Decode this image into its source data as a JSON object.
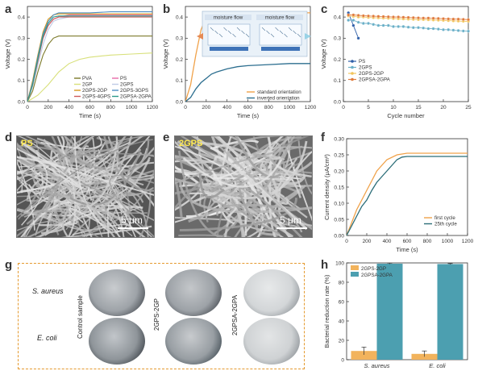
{
  "panels": {
    "a": "a",
    "b": "b",
    "c": "c",
    "d": "d",
    "e": "e",
    "f": "f",
    "g": "g",
    "h": "h"
  },
  "sem": {
    "d": {
      "tag": "PS",
      "scale": "5 μm"
    },
    "e": {
      "tag": "2GPS",
      "scale": "5 μm"
    }
  },
  "dishes": {
    "row1": "S. aureus",
    "row2": "E. coli",
    "cols": [
      "Control sample",
      "2GPS-2GP",
      "2GPSA-2GPA"
    ]
  },
  "chart_data": [
    {
      "panel": "a",
      "type": "line",
      "xlabel": "Time (s)",
      "ylabel": "Voltage (V)",
      "xlim": [
        0,
        1200
      ],
      "ylim": [
        0,
        0.45
      ],
      "xticks": [
        0,
        200,
        400,
        600,
        800,
        1000,
        1200
      ],
      "yticks": [
        0.0,
        0.1,
        0.2,
        0.3,
        0.4
      ],
      "legend_position": "bottom-right",
      "series": [
        {
          "name": "PVA",
          "color": "#7c7a2a",
          "x": [
            0,
            50,
            100,
            150,
            200,
            250,
            300,
            400,
            600,
            800,
            1000,
            1200
          ],
          "y": [
            0,
            0.05,
            0.14,
            0.22,
            0.27,
            0.3,
            0.31,
            0.31,
            0.31,
            0.31,
            0.31,
            0.31
          ]
        },
        {
          "name": "PS",
          "color": "#e86aa7",
          "x": [
            0,
            50,
            100,
            150,
            200,
            250,
            300,
            400,
            600,
            800,
            1000,
            1200
          ],
          "y": [
            0,
            0.08,
            0.2,
            0.3,
            0.36,
            0.39,
            0.4,
            0.41,
            0.41,
            0.41,
            0.41,
            0.41
          ]
        },
        {
          "name": "2GP",
          "color": "#d8e07a",
          "x": [
            0,
            100,
            200,
            300,
            400,
            500,
            600,
            800,
            1000,
            1200
          ],
          "y": [
            0,
            0.03,
            0.08,
            0.14,
            0.18,
            0.2,
            0.21,
            0.22,
            0.225,
            0.23
          ]
        },
        {
          "name": "2GPS",
          "color": "#c0cbe6",
          "x": [
            0,
            50,
            100,
            150,
            200,
            250,
            300,
            400,
            600,
            800,
            1000,
            1200
          ],
          "y": [
            0,
            0.07,
            0.17,
            0.27,
            0.34,
            0.38,
            0.39,
            0.4,
            0.4,
            0.4,
            0.4,
            0.4
          ]
        },
        {
          "name": "2GPS-2GP",
          "color": "#d89a1e",
          "x": [
            0,
            50,
            100,
            150,
            200,
            250,
            300,
            400,
            600,
            800,
            1000,
            1200
          ],
          "y": [
            0,
            0.1,
            0.22,
            0.33,
            0.39,
            0.41,
            0.415,
            0.415,
            0.415,
            0.415,
            0.415,
            0.415
          ]
        },
        {
          "name": "2GPS-3GPS",
          "color": "#4f8fc4",
          "x": [
            0,
            50,
            100,
            150,
            200,
            250,
            300,
            400,
            600,
            800,
            1000,
            1200
          ],
          "y": [
            0,
            0.09,
            0.21,
            0.32,
            0.38,
            0.41,
            0.42,
            0.42,
            0.42,
            0.425,
            0.425,
            0.425
          ]
        },
        {
          "name": "2GPS-4GPS",
          "color": "#cf5b5b",
          "x": [
            0,
            50,
            100,
            150,
            200,
            250,
            300,
            400,
            600,
            800,
            1000,
            1200
          ],
          "y": [
            0,
            0.08,
            0.19,
            0.3,
            0.36,
            0.39,
            0.4,
            0.4,
            0.4,
            0.4,
            0.4,
            0.4
          ]
        },
        {
          "name": "2GPSA-2GPA",
          "color": "#2b9a8a",
          "x": [
            0,
            50,
            100,
            150,
            200,
            250,
            300,
            400,
            600,
            800,
            1000,
            1200
          ],
          "y": [
            0,
            0.08,
            0.2,
            0.31,
            0.37,
            0.4,
            0.405,
            0.405,
            0.405,
            0.405,
            0.405,
            0.405
          ]
        }
      ]
    },
    {
      "panel": "b",
      "type": "line",
      "xlabel": "Time (s)",
      "ylabel": "Voltage (V)",
      "xlim": [
        0,
        1200
      ],
      "ylim": [
        0,
        0.45
      ],
      "xticks": [
        0,
        200,
        400,
        600,
        800,
        1000,
        1200
      ],
      "yticks": [
        0.0,
        0.1,
        0.2,
        0.3,
        0.4
      ],
      "legend_position": "bottom-right",
      "inset_labels": [
        "moisture flow",
        "moisture flow"
      ],
      "series": [
        {
          "name": "standard orientation",
          "color": "#f0a24a",
          "x": [
            0,
            50,
            100,
            150,
            200,
            250,
            300,
            400,
            600,
            800,
            1000,
            1200
          ],
          "y": [
            0,
            0.08,
            0.22,
            0.34,
            0.4,
            0.42,
            0.42,
            0.42,
            0.42,
            0.42,
            0.42,
            0.42
          ]
        },
        {
          "name": "inverted orientation",
          "color": "#2c6e8f",
          "x": [
            0,
            50,
            100,
            150,
            200,
            250,
            300,
            400,
            500,
            600,
            800,
            1000,
            1200
          ],
          "y": [
            0,
            0.02,
            0.06,
            0.09,
            0.11,
            0.13,
            0.14,
            0.155,
            0.165,
            0.17,
            0.175,
            0.18,
            0.18
          ]
        }
      ]
    },
    {
      "panel": "c",
      "type": "line",
      "xlabel": "Cycle number",
      "ylabel": "Voltage (V)",
      "xlim": [
        0,
        25
      ],
      "ylim": [
        0,
        0.45
      ],
      "xticks": [
        0,
        5,
        10,
        15,
        20,
        25
      ],
      "yticks": [
        0.0,
        0.1,
        0.2,
        0.3,
        0.4
      ],
      "legend_position": "bottom-left",
      "series": [
        {
          "name": "PS",
          "color": "#2f5fa8",
          "x": [
            1,
            2,
            3
          ],
          "y": [
            0.42,
            0.36,
            0.3
          ]
        },
        {
          "name": "2GPS",
          "color": "#6bb0c8",
          "x": [
            1,
            2,
            3,
            4,
            5,
            6,
            7,
            8,
            9,
            10,
            11,
            12,
            13,
            14,
            15,
            16,
            17,
            18,
            19,
            20,
            21,
            22,
            23,
            24,
            25
          ],
          "y": [
            0.385,
            0.385,
            0.375,
            0.37,
            0.37,
            0.365,
            0.36,
            0.36,
            0.36,
            0.355,
            0.355,
            0.355,
            0.352,
            0.35,
            0.35,
            0.348,
            0.345,
            0.345,
            0.343,
            0.34,
            0.34,
            0.338,
            0.336,
            0.334,
            0.333
          ]
        },
        {
          "name": "2GPS-2GP",
          "color": "#f2c45a",
          "x": [
            1,
            2,
            3,
            4,
            5,
            6,
            7,
            8,
            9,
            10,
            11,
            12,
            13,
            14,
            15,
            16,
            17,
            18,
            19,
            20,
            21,
            22,
            23,
            24,
            25
          ],
          "y": [
            0.405,
            0.403,
            0.4,
            0.4,
            0.398,
            0.397,
            0.396,
            0.395,
            0.394,
            0.393,
            0.392,
            0.391,
            0.39,
            0.389,
            0.388,
            0.388,
            0.387,
            0.386,
            0.385,
            0.384,
            0.383,
            0.382,
            0.381,
            0.38,
            0.38
          ]
        },
        {
          "name": "2GPSA-2GPA",
          "color": "#e07b3c",
          "x": [
            1,
            2,
            3,
            4,
            5,
            6,
            7,
            8,
            9,
            10,
            11,
            12,
            13,
            14,
            15,
            16,
            17,
            18,
            19,
            20,
            21,
            22,
            23,
            24,
            25
          ],
          "y": [
            0.41,
            0.41,
            0.408,
            0.406,
            0.405,
            0.404,
            0.403,
            0.402,
            0.401,
            0.4,
            0.4,
            0.399,
            0.398,
            0.397,
            0.396,
            0.395,
            0.395,
            0.394,
            0.393,
            0.392,
            0.391,
            0.39,
            0.39,
            0.389,
            0.388
          ]
        }
      ]
    },
    {
      "panel": "f",
      "type": "line",
      "xlabel": "Time (s)",
      "ylabel": "Current density (μA/cm²)",
      "xlim": [
        0,
        1200
      ],
      "ylim": [
        0,
        0.3
      ],
      "xticks": [
        0,
        200,
        400,
        600,
        800,
        1000,
        1200
      ],
      "yticks": [
        0.0,
        0.05,
        0.1,
        0.15,
        0.2,
        0.25,
        0.3
      ],
      "legend_position": "bottom-right",
      "series": [
        {
          "name": "first cycle",
          "color": "#f0a24a",
          "x": [
            0,
            50,
            100,
            150,
            200,
            250,
            300,
            400,
            500,
            600,
            700,
            800,
            1000,
            1200
          ],
          "y": [
            0,
            0.04,
            0.08,
            0.11,
            0.14,
            0.17,
            0.2,
            0.235,
            0.25,
            0.255,
            0.255,
            0.255,
            0.255,
            0.255
          ]
        },
        {
          "name": "25th cycle",
          "color": "#2b6d78",
          "x": [
            0,
            50,
            100,
            150,
            200,
            250,
            300,
            400,
            500,
            550,
            600,
            800,
            1000,
            1200
          ],
          "y": [
            0,
            0.03,
            0.06,
            0.09,
            0.11,
            0.14,
            0.165,
            0.2,
            0.235,
            0.243,
            0.245,
            0.245,
            0.245,
            0.245
          ]
        }
      ]
    },
    {
      "panel": "h",
      "type": "bar",
      "xlabel": "",
      "ylabel": "Bacterial reduction rate (%)",
      "categories": [
        "S. aureus",
        "E. coli"
      ],
      "ylim": [
        0,
        100
      ],
      "yticks": [
        0,
        20,
        40,
        60,
        80,
        100
      ],
      "legend_position": "top-left",
      "series": [
        {
          "name": "2GPS-2GP",
          "color": "#f2b35c",
          "values": [
            9,
            6
          ],
          "errors": [
            4,
            3
          ]
        },
        {
          "name": "2GPSA-2GPA",
          "color": "#4c9fb0",
          "values": [
            99.2,
            98.8
          ],
          "errors": [
            0.5,
            0.5
          ]
        }
      ]
    }
  ]
}
